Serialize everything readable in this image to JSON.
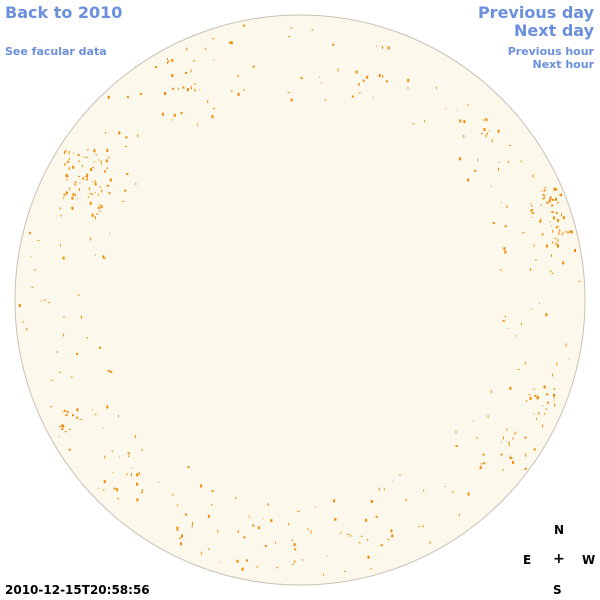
{
  "nav": {
    "back": "Back to 2010",
    "facular": "See facular data",
    "previous_day": "Previous day",
    "next_day": "Next day",
    "previous_hour": "Previous hour",
    "next_hour": "Next hour"
  },
  "compass": {
    "north": "N",
    "east": "E",
    "center": "+",
    "west": "W",
    "south": "S"
  },
  "timestamp": "2010-12-15T20:58:56",
  "colors": {
    "disk_fill": "#fdf8ec",
    "disk_edge": "#c9c2b4",
    "mark": "#ee8a05",
    "link": "#6a8fdc"
  }
}
